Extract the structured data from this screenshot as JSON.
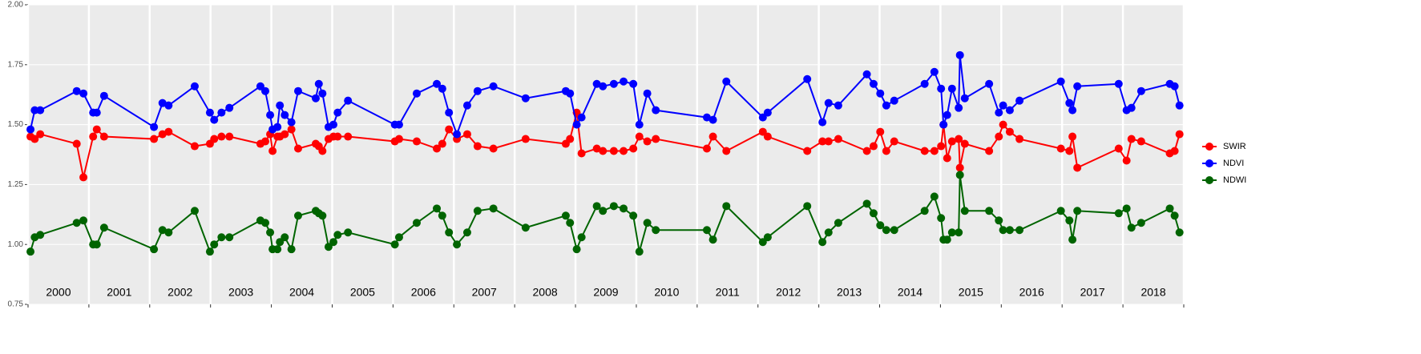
{
  "chart_data": {
    "type": "line",
    "xlim": [
      2000,
      2019
    ],
    "xticks": [
      2000,
      2001,
      2002,
      2003,
      2004,
      2005,
      2006,
      2007,
      2008,
      2009,
      2010,
      2011,
      2012,
      2013,
      2014,
      2015,
      2016,
      2017,
      2018,
      2019
    ],
    "year_labels": [
      "2000",
      "2001",
      "2002",
      "2003",
      "2004",
      "2005",
      "2006",
      "2007",
      "2008",
      "2009",
      "2010",
      "2011",
      "2012",
      "2013",
      "2014",
      "2015",
      "2016",
      "2017",
      "2018"
    ],
    "ylim": [
      0.75,
      2.0
    ],
    "yticks": [
      {
        "value": 0.75,
        "label": "0.75"
      },
      {
        "value": 1.0,
        "label": "1.00"
      },
      {
        "value": 1.25,
        "label": "1.25"
      },
      {
        "value": 1.5,
        "label": "1.50"
      },
      {
        "value": 1.75,
        "label": "1.75"
      },
      {
        "value": 2.0,
        "label": "2.00"
      }
    ],
    "grid": true,
    "legend": "right",
    "x": [
      2000.04,
      2000.11,
      2000.2,
      2000.8,
      2000.91,
      2001.07,
      2001.13,
      2001.25,
      2002.07,
      2002.21,
      2002.31,
      2002.74,
      2002.99,
      2003.06,
      2003.18,
      2003.31,
      2003.82,
      2003.9,
      2003.98,
      2004.02,
      2004.1,
      2004.14,
      2004.22,
      2004.33,
      2004.44,
      2004.73,
      2004.78,
      2004.84,
      2004.94,
      2005.02,
      2005.09,
      2005.26,
      2006.03,
      2006.1,
      2006.39,
      2006.72,
      2006.81,
      2006.92,
      2007.05,
      2007.22,
      2007.39,
      2007.65,
      2008.18,
      2008.84,
      2008.91,
      2009.02,
      2009.1,
      2009.35,
      2009.45,
      2009.63,
      2009.79,
      2009.95,
      2010.05,
      2010.18,
      2010.32,
      2011.16,
      2011.26,
      2011.48,
      2012.08,
      2012.16,
      2012.81,
      2013.06,
      2013.16,
      2013.32,
      2013.79,
      2013.9,
      2014.01,
      2014.11,
      2014.24,
      2014.74,
      2014.9,
      2015.01,
      2015.05,
      2015.11,
      2015.19,
      2015.3,
      2015.32,
      2015.4,
      2015.8,
      2015.96,
      2016.03,
      2016.14,
      2016.3,
      2016.98,
      2017.12,
      2017.17,
      2017.25,
      2017.93,
      2018.06,
      2018.14,
      2018.3,
      2018.77,
      2018.85,
      2018.93
    ],
    "series": [
      {
        "name": "SWIR",
        "color": "#ff0000",
        "values": [
          1.45,
          1.44,
          1.46,
          1.42,
          1.28,
          1.45,
          1.48,
          1.45,
          1.44,
          1.46,
          1.47,
          1.41,
          1.42,
          1.44,
          1.45,
          1.45,
          1.42,
          1.43,
          1.46,
          1.39,
          1.45,
          1.45,
          1.46,
          1.48,
          1.4,
          1.42,
          1.41,
          1.39,
          1.44,
          1.45,
          1.45,
          1.45,
          1.43,
          1.44,
          1.43,
          1.4,
          1.42,
          1.48,
          1.44,
          1.46,
          1.41,
          1.4,
          1.44,
          1.42,
          1.44,
          1.55,
          1.38,
          1.4,
          1.39,
          1.39,
          1.39,
          1.4,
          1.45,
          1.43,
          1.44,
          1.4,
          1.45,
          1.39,
          1.47,
          1.45,
          1.39,
          1.43,
          1.43,
          1.44,
          1.39,
          1.41,
          1.47,
          1.39,
          1.43,
          1.39,
          1.39,
          1.41,
          1.5,
          1.36,
          1.43,
          1.44,
          1.32,
          1.42,
          1.39,
          1.45,
          1.5,
          1.47,
          1.44,
          1.4,
          1.39,
          1.45,
          1.32,
          1.4,
          1.35,
          1.44,
          1.43,
          1.38,
          1.39,
          1.46
        ]
      },
      {
        "name": "NDVI",
        "color": "#0000ff",
        "values": [
          1.48,
          1.56,
          1.56,
          1.64,
          1.63,
          1.55,
          1.55,
          1.62,
          1.49,
          1.59,
          1.58,
          1.66,
          1.55,
          1.52,
          1.55,
          1.57,
          1.66,
          1.64,
          1.54,
          1.48,
          1.49,
          1.58,
          1.54,
          1.51,
          1.64,
          1.61,
          1.67,
          1.63,
          1.49,
          1.5,
          1.55,
          1.6,
          1.5,
          1.5,
          1.63,
          1.67,
          1.65,
          1.55,
          1.46,
          1.58,
          1.64,
          1.66,
          1.61,
          1.64,
          1.63,
          1.5,
          1.53,
          1.67,
          1.66,
          1.67,
          1.68,
          1.67,
          1.5,
          1.63,
          1.56,
          1.53,
          1.52,
          1.68,
          1.53,
          1.55,
          1.69,
          1.51,
          1.59,
          1.58,
          1.71,
          1.67,
          1.63,
          1.58,
          1.6,
          1.67,
          1.72,
          1.65,
          1.5,
          1.54,
          1.65,
          1.57,
          1.79,
          1.61,
          1.67,
          1.55,
          1.58,
          1.56,
          1.6,
          1.68,
          1.59,
          1.56,
          1.66,
          1.67,
          1.56,
          1.57,
          1.64,
          1.67,
          1.66,
          1.58
        ]
      },
      {
        "name": "NDWI",
        "color": "#006400",
        "values": [
          0.97,
          1.03,
          1.04,
          1.09,
          1.1,
          1.0,
          1.0,
          1.07,
          0.98,
          1.06,
          1.05,
          1.14,
          0.97,
          1.0,
          1.03,
          1.03,
          1.1,
          1.09,
          1.05,
          0.98,
          0.98,
          1.01,
          1.03,
          0.98,
          1.12,
          1.14,
          1.13,
          1.12,
          0.99,
          1.01,
          1.04,
          1.05,
          1.0,
          1.03,
          1.09,
          1.15,
          1.12,
          1.05,
          1.0,
          1.05,
          1.14,
          1.15,
          1.07,
          1.12,
          1.09,
          0.98,
          1.03,
          1.16,
          1.14,
          1.16,
          1.15,
          1.12,
          0.97,
          1.09,
          1.06,
          1.06,
          1.02,
          1.16,
          1.01,
          1.03,
          1.16,
          1.01,
          1.05,
          1.09,
          1.17,
          1.13,
          1.08,
          1.06,
          1.06,
          1.14,
          1.2,
          1.11,
          1.02,
          1.02,
          1.05,
          1.05,
          1.29,
          1.14,
          1.14,
          1.1,
          1.06,
          1.06,
          1.06,
          1.14,
          1.1,
          1.02,
          1.14,
          1.13,
          1.15,
          1.07,
          1.09,
          1.15,
          1.12,
          1.05
        ]
      }
    ]
  }
}
